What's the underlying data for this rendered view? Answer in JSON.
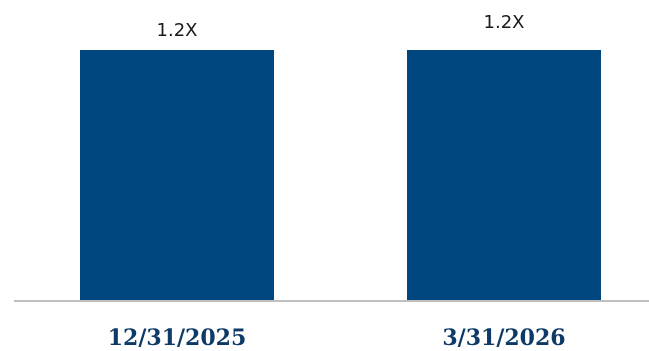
{
  "chart_data": {
    "type": "bar",
    "categories": [
      "12/31/2025",
      "3/31/2026"
    ],
    "values": [
      1.2,
      1.2
    ],
    "data_labels": [
      "1.2X",
      "1.2X"
    ],
    "title": "",
    "xlabel": "",
    "ylabel": "",
    "ylim": [
      0,
      1.2
    ],
    "grid": false,
    "legend": "none",
    "colors": {
      "bar": "#00467f",
      "axis": "#bfbfbf",
      "category_text": "#0d3a66",
      "label_text": "#1a1a1a"
    }
  }
}
